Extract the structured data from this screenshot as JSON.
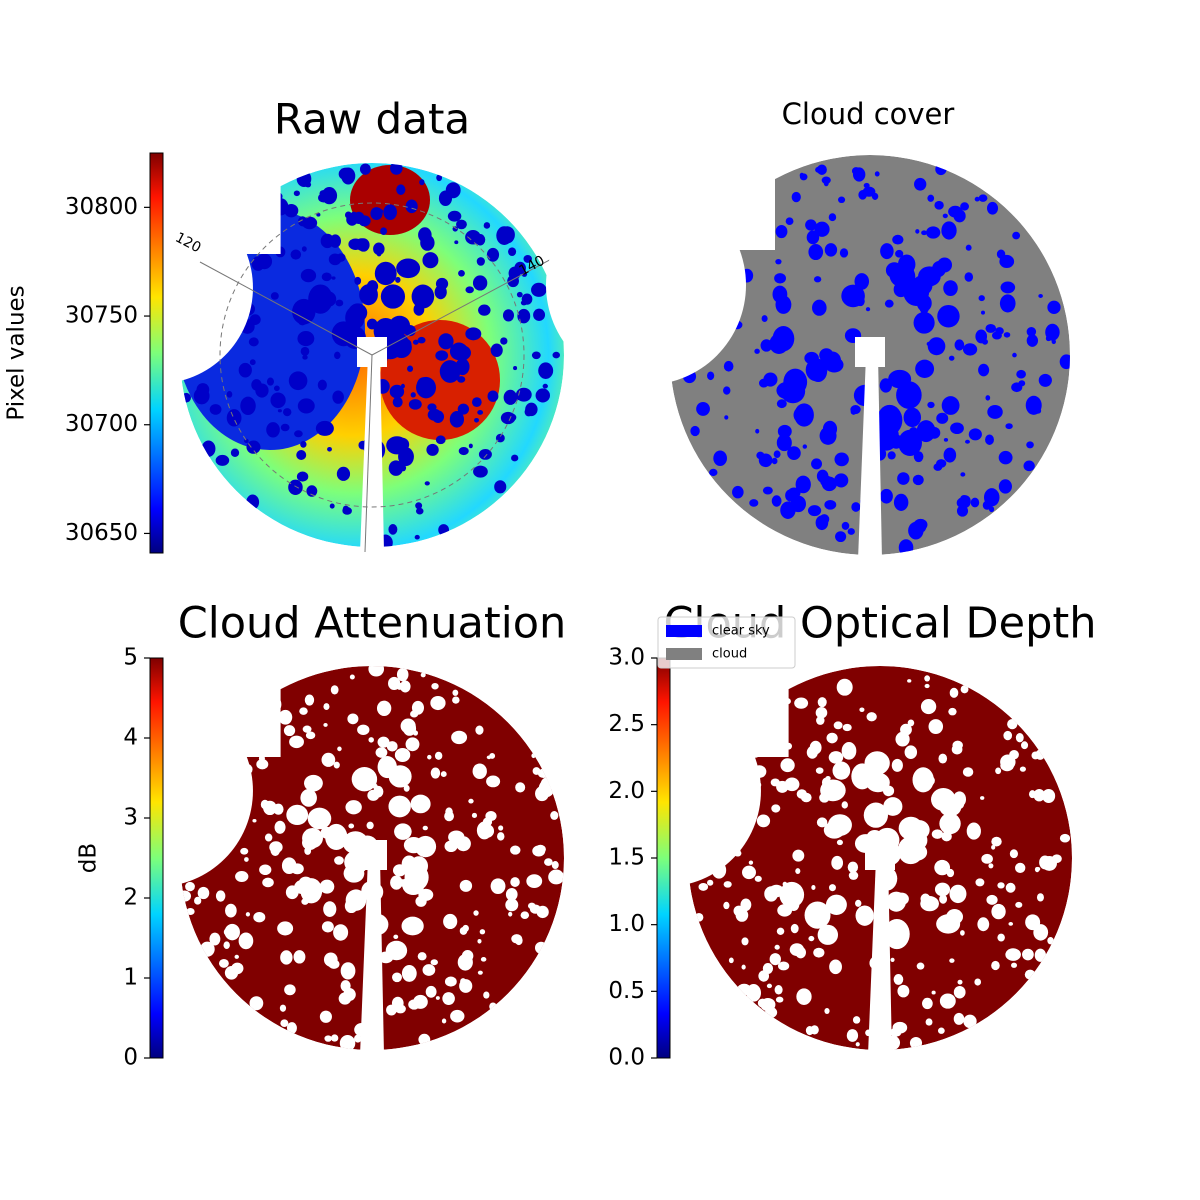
{
  "chart_data": [
    {
      "type": "image",
      "title": "Raw data",
      "colorbar_label": "Pixel values",
      "colormap": "jet",
      "ylim": [
        30641,
        30825
      ],
      "yticks": [
        30650,
        30700,
        30750,
        30800
      ],
      "annotations": [
        "120",
        "140"
      ]
    },
    {
      "type": "image",
      "title": "Cloud cover",
      "series": [
        {
          "name": "clear sky",
          "color": "#0000ff"
        },
        {
          "name": "cloud",
          "color": "#808080"
        }
      ]
    },
    {
      "type": "image",
      "title": "Cloud Attenuation",
      "colorbar_label": "dB",
      "colormap": "jet",
      "color": "#800000",
      "ylim": [
        0,
        5
      ],
      "yticks": [
        0,
        1,
        2,
        3,
        4,
        5
      ]
    },
    {
      "type": "image",
      "title": "Cloud Optical Depth",
      "colormap": "jet",
      "color": "#800000",
      "ylim": [
        0,
        3
      ],
      "yticks": [
        {
          "value": 0,
          "label": "0.0"
        },
        0.5,
        {
          "value": 1,
          "label": "1.0"
        },
        1.5,
        {
          "value": 2,
          "label": "2.0"
        },
        2.5,
        {
          "value": 3,
          "label": "3.0"
        }
      ]
    }
  ]
}
